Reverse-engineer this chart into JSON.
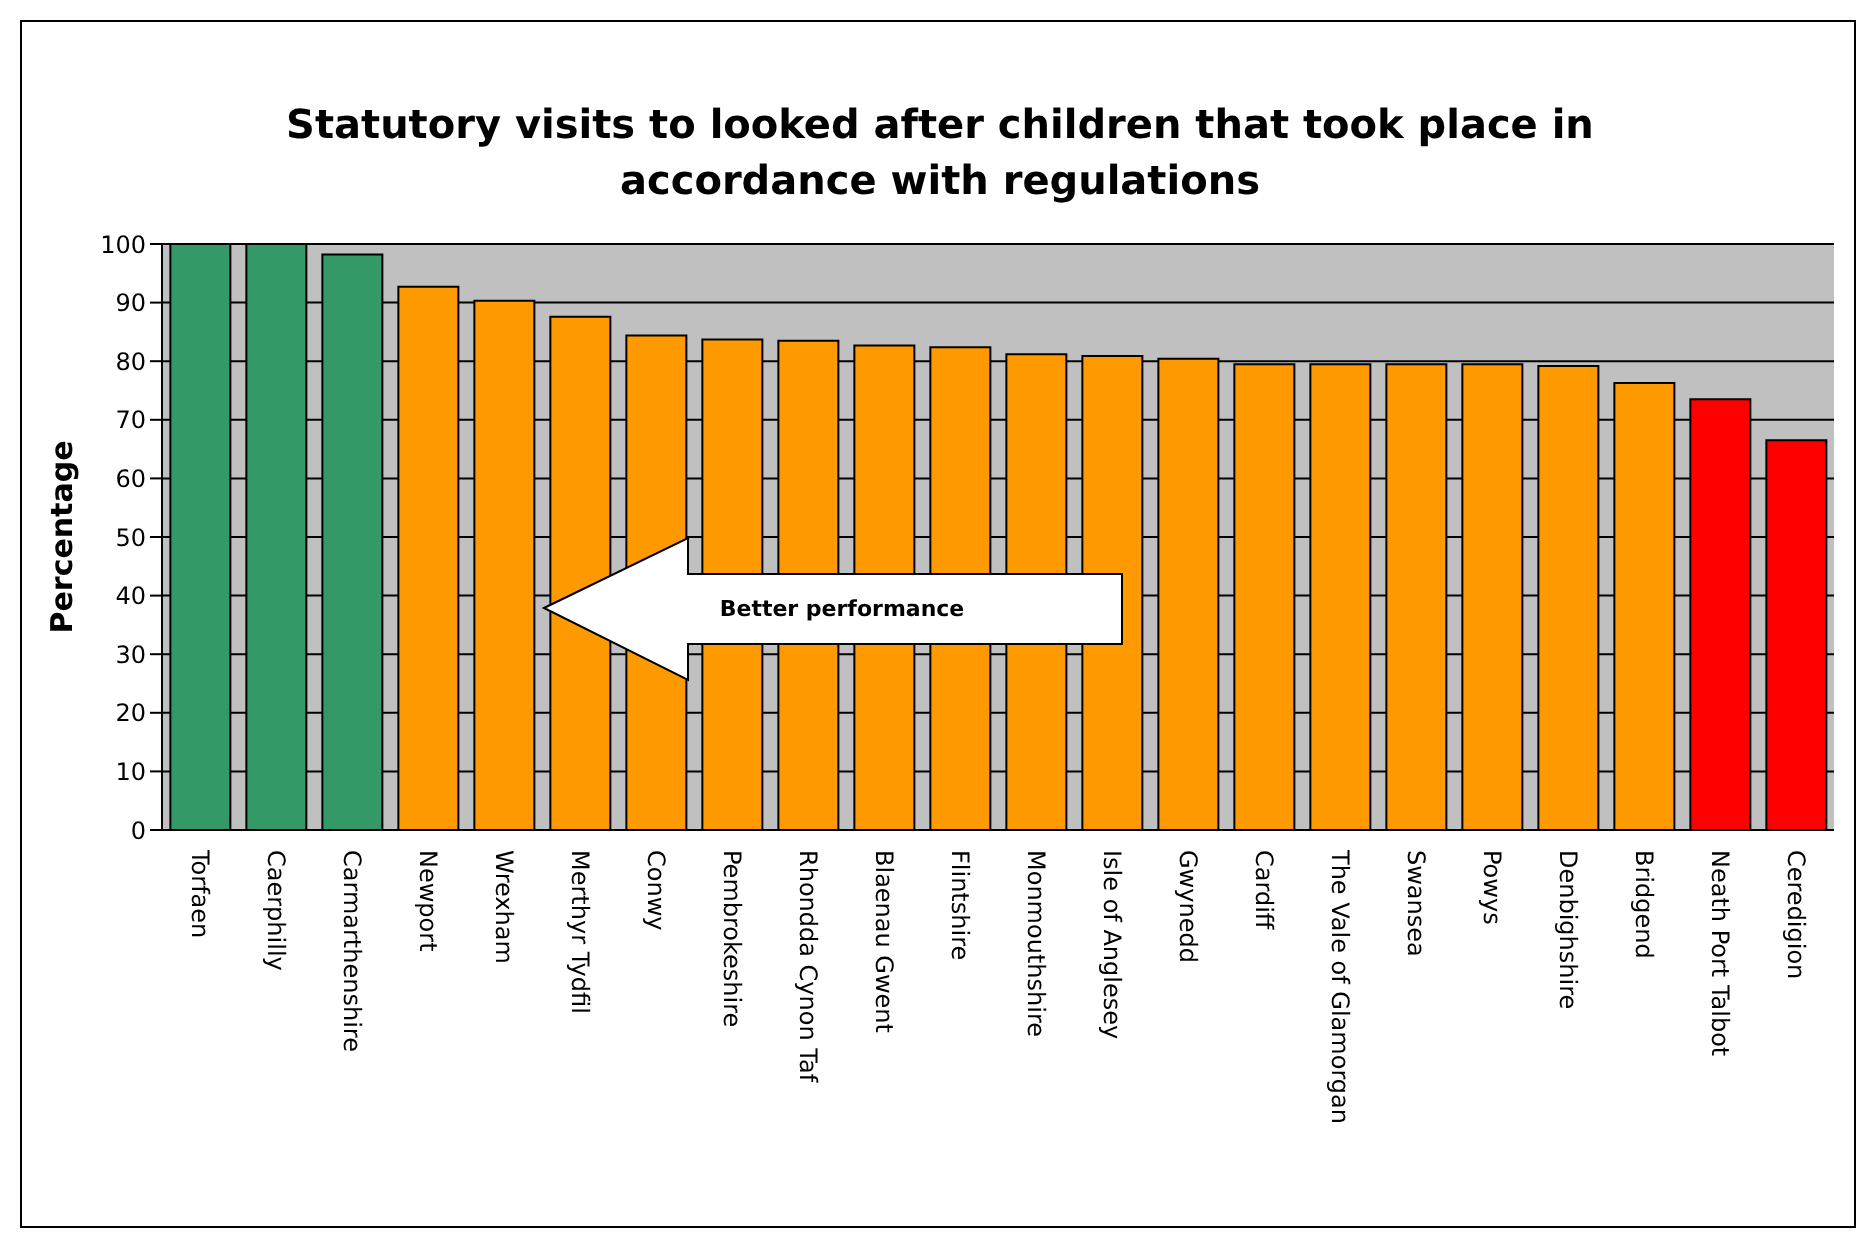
{
  "chart_data": {
    "type": "bar",
    "title": "Statutory visits to looked after children that took place in accordance with regulations",
    "ylabel": "Percentage",
    "categories": [
      "Torfaen",
      "Caerphilly",
      "Carmarthenshire",
      "Newport",
      "Wrexham",
      "Merthyr Tydfil",
      "Conwy",
      "Pembrokeshire",
      "Rhondda Cynon Taf",
      "Blaenau Gwent",
      "Flintshire",
      "Monmouthshire",
      "Isle of Anglesey",
      "Gwynedd",
      "Cardiff",
      "The Vale of Glamorgan",
      "Swansea",
      "Powys",
      "Denbighshire",
      "Bridgend",
      "Neath Port Talbot",
      "Ceredigion"
    ],
    "values": [
      100,
      100,
      98.2,
      92.7,
      90.3,
      87.6,
      84.4,
      83.7,
      83.5,
      82.7,
      82.4,
      81.2,
      80.9,
      80.4,
      79.5,
      79.5,
      79.5,
      79.5,
      79.2,
      76.3,
      73.5,
      66.5
    ],
    "colors": [
      "#339966",
      "#339966",
      "#339966",
      "#ff9900",
      "#ff9900",
      "#ff9900",
      "#ff9900",
      "#ff9900",
      "#ff9900",
      "#ff9900",
      "#ff9900",
      "#ff9900",
      "#ff9900",
      "#ff9900",
      "#ff9900",
      "#ff9900",
      "#ff9900",
      "#ff9900",
      "#ff9900",
      "#ff9900",
      "#ff0000",
      "#ff0000"
    ],
    "ylim": [
      0,
      100
    ],
    "yticks": [
      0,
      10,
      20,
      30,
      40,
      50,
      60,
      70,
      80,
      90,
      100
    ],
    "grid": "y",
    "annotations": [
      "Better performance"
    ]
  }
}
